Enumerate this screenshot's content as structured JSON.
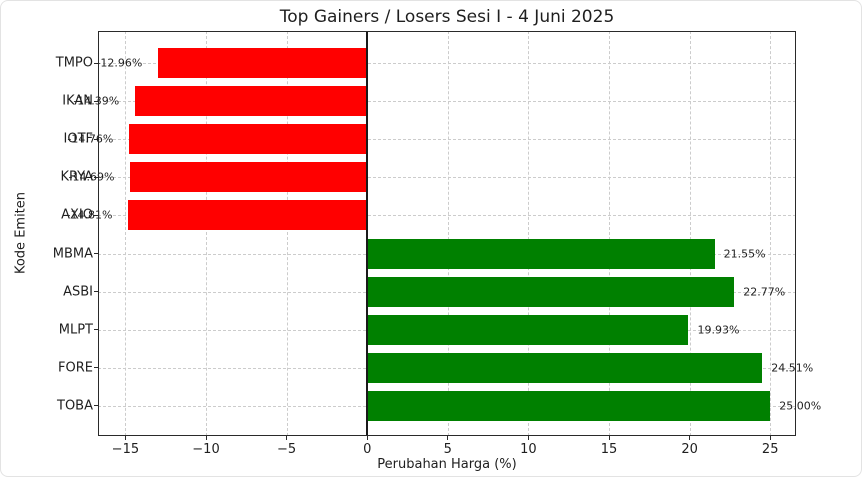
{
  "chart_data": {
    "type": "bar",
    "orientation": "horizontal",
    "title": "Top Gainers / Losers Sesi I - 4 Juni 2025",
    "xlabel": "Perubahan Harga (%)",
    "ylabel": "Kode Emiten",
    "categories": [
      "TMPO",
      "IKAN",
      "IOTF",
      "KRYA",
      "AXIO",
      "MBMA",
      "ASBI",
      "MLPT",
      "FORE",
      "TOBA"
    ],
    "values": [
      -12.96,
      -14.39,
      -14.76,
      -14.69,
      -14.81,
      21.55,
      22.77,
      19.93,
      24.51,
      25.0
    ],
    "value_labels": [
      "-12.96%",
      "-14.39%",
      "-14.76%",
      "-14.69%",
      "-14.81%",
      "21.55%",
      "22.77%",
      "19.93%",
      "24.51%",
      "25.00%"
    ],
    "colors": {
      "losers": "#ff0000",
      "gainers": "#008000"
    },
    "x_tick_values": [
      -15,
      -10,
      -5,
      0,
      5,
      10,
      15,
      20,
      25
    ],
    "x_tick_labels": [
      "−15",
      "−10",
      "−5",
      "0",
      "5",
      "10",
      "15",
      "20",
      "25"
    ],
    "xlim": [
      -16.7,
      26.6
    ],
    "grid": "dashed",
    "zero_line": true,
    "legend": "none"
  }
}
